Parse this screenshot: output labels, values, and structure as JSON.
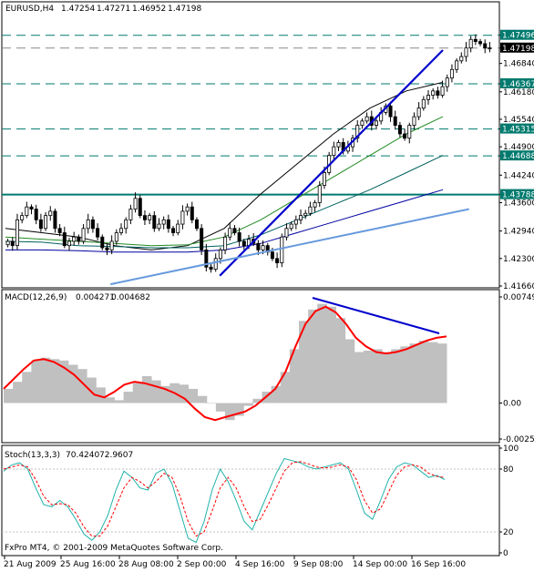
{
  "chart_data": [
    {
      "type": "line",
      "panel": "price",
      "title": "EURUSD,H4",
      "ohlc_header": [
        "1.47254",
        "1.47271",
        "1.46952",
        "1.47198"
      ],
      "ylim": [
        1.4166,
        1.4785
      ],
      "y_ticks": [
        "1.47496",
        "1.47198",
        "1.46840",
        "1.46367",
        "1.46180",
        "1.45540",
        "1.45315",
        "1.44900",
        "1.44688",
        "1.44240",
        "1.43788",
        "1.43600",
        "1.42940",
        "1.42300",
        "1.41660"
      ],
      "price_tags": [
        {
          "value": "1.47496",
          "style": "teal"
        },
        {
          "value": "1.47198",
          "style": "black"
        },
        {
          "value": "1.46367",
          "style": "teal"
        },
        {
          "value": "1.45315",
          "style": "teal"
        },
        {
          "value": "1.44688",
          "style": "teal"
        },
        {
          "value": "1.43788",
          "style": "teal"
        }
      ],
      "horizontal_levels": [
        1.47496,
        1.47198,
        1.46367,
        1.45315,
        1.44688,
        1.43788
      ],
      "close": [
        1.427,
        1.426,
        1.432,
        1.433,
        1.435,
        1.4345,
        1.432,
        1.43,
        1.433,
        1.434,
        1.43,
        1.429,
        1.426,
        1.427,
        1.428,
        1.427,
        1.43,
        1.432,
        1.43,
        1.428,
        1.4255,
        1.425,
        1.427,
        1.429,
        1.43,
        1.432,
        1.4345,
        1.437,
        1.433,
        1.432,
        1.433,
        1.43,
        1.431,
        1.432,
        1.43,
        1.429,
        1.431,
        1.434,
        1.435,
        1.432,
        1.43,
        1.425,
        1.421,
        1.4205,
        1.423,
        1.425,
        1.428,
        1.43,
        1.429,
        1.427,
        1.426,
        1.4275,
        1.4265,
        1.425,
        1.426,
        1.4245,
        1.423,
        1.422,
        1.428,
        1.43,
        1.431,
        1.432,
        1.433,
        1.4335,
        1.435,
        1.436,
        1.44,
        1.443,
        1.447,
        1.449,
        1.45,
        1.448,
        1.449,
        1.451,
        1.454,
        1.455,
        1.456,
        1.454,
        1.455,
        1.457,
        1.4585,
        1.456,
        1.454,
        1.452,
        1.451,
        1.454,
        1.456,
        1.458,
        1.46,
        1.461,
        1.462,
        1.461,
        1.463,
        1.465,
        1.467,
        1.469,
        1.47,
        1.472,
        1.474,
        1.4735,
        1.473,
        1.472,
        1.472
      ],
      "moving_averages": [
        {
          "color": "#000000",
          "start": [
            1.43,
            1.429,
            1.428,
            1.426,
            1.425,
            1.426,
            1.43,
            1.438,
            1.445,
            1.452,
            1.458,
            1.462,
            1.464
          ]
        },
        {
          "color": "#228b22",
          "start": [
            1.428,
            1.4275,
            1.427,
            1.4265,
            1.426,
            1.4262,
            1.428,
            1.432,
            1.437,
            1.442,
            1.447,
            1.452,
            1.456
          ]
        },
        {
          "color": "#006060",
          "start": [
            1.427,
            1.4268,
            1.426,
            1.4258,
            1.4255,
            1.4255,
            1.426,
            1.4285,
            1.432,
            1.4355,
            1.439,
            1.443,
            1.447
          ]
        },
        {
          "color": "#0000a0",
          "start": [
            1.425,
            1.425,
            1.4248,
            1.4245,
            1.4245,
            1.4245,
            1.425,
            1.4265,
            1.429,
            1.4315,
            1.434,
            1.4365,
            1.439
          ]
        }
      ],
      "trendlines": [
        {
          "color": "#0000cc",
          "from": [
            0.49,
            1.419
          ],
          "to": [
            1.0,
            1.4715
          ]
        },
        {
          "color": "#6699dd",
          "from": [
            0.24,
            1.417
          ],
          "to": [
            1.06,
            1.4345
          ]
        }
      ]
    },
    {
      "type": "bar",
      "panel": "macd",
      "title": "MACD(12,26,9)",
      "header_values": [
        "0.004271",
        "0.004682"
      ],
      "ylim": [
        -0.00254,
        0.00749
      ],
      "y_ticks": [
        "0.00749",
        "0.00",
        "-0.00254"
      ],
      "histogram": [
        0.001,
        0.0015,
        0.0022,
        0.003,
        0.0032,
        0.0031,
        0.003,
        0.0027,
        0.0024,
        0.0018,
        0.0011,
        0.0004,
        0.0002,
        0.0008,
        0.0014,
        0.0019,
        0.0016,
        0.0012,
        0.0014,
        0.0013,
        0.001,
        0.0005,
        0.0,
        -0.0006,
        -0.0012,
        -0.0009,
        -0.0002,
        0.0003,
        0.0008,
        0.0012,
        0.0022,
        0.0038,
        0.0058,
        0.0066,
        0.007,
        0.0068,
        0.006,
        0.0045,
        0.0036,
        0.0037,
        0.0038,
        0.0036,
        0.0038,
        0.004,
        0.0042,
        0.0044,
        0.0043,
        0.0042
      ],
      "signal": [
        0.001,
        0.0017,
        0.0024,
        0.003,
        0.0031,
        0.0029,
        0.0025,
        0.002,
        0.0013,
        0.0006,
        0.0004,
        0.0008,
        0.0013,
        0.0015,
        0.0014,
        0.0012,
        0.001,
        0.0007,
        0.0003,
        -0.0004,
        -0.001,
        -0.0012,
        -0.001,
        -0.0008,
        -0.0006,
        -0.0002,
        0.0004,
        0.001,
        0.0022,
        0.004,
        0.0056,
        0.0065,
        0.0068,
        0.0064,
        0.0056,
        0.0046,
        0.004,
        0.0036,
        0.0035,
        0.0036,
        0.0038,
        0.0041,
        0.0044,
        0.0046,
        0.0047
      ]
    },
    {
      "type": "line",
      "panel": "stochastic",
      "title": "Stoch(13,3,3)",
      "header_values": [
        "70.4240",
        "72.9607"
      ],
      "ylim": [
        0,
        100
      ],
      "y_ticks": [
        "100",
        "80",
        "20",
        "0"
      ],
      "main": [
        78,
        84,
        86,
        80,
        62,
        46,
        44,
        50,
        44,
        32,
        18,
        12,
        20,
        36,
        60,
        78,
        72,
        62,
        60,
        76,
        80,
        66,
        40,
        14,
        10,
        30,
        60,
        80,
        68,
        50,
        30,
        22,
        40,
        58,
        76,
        90,
        88,
        86,
        82,
        80,
        82,
        84,
        86,
        80,
        60,
        38,
        32,
        50,
        70,
        82,
        86,
        84,
        78,
        72,
        74,
        70
      ],
      "signal": [
        80,
        82,
        84,
        82,
        70,
        54,
        46,
        47,
        46,
        38,
        25,
        16,
        16,
        26,
        44,
        62,
        72,
        68,
        62,
        68,
        76,
        72,
        54,
        30,
        16,
        20,
        40,
        62,
        72,
        62,
        44,
        30,
        32,
        46,
        62,
        78,
        86,
        87,
        85,
        82,
        81,
        82,
        84,
        82,
        70,
        50,
        38,
        42,
        58,
        74,
        82,
        84,
        82,
        76,
        73,
        72
      ]
    }
  ],
  "x_axis_labels": [
    "21 Aug 2009",
    "25 Aug 16:00",
    "28 Aug 08:00",
    "2 Sep 00:00",
    "4 Sep 16:00",
    "9 Sep 08:00",
    "14 Sep 00:00",
    "16 Sep 16:00"
  ],
  "copyright": "FxPro MT4, © 2001-2009 MetaQuotes Software Corp.",
  "colors": {
    "background": "#ffffff",
    "candle": "#000000",
    "teal_level": "#007a6e",
    "macd_hist": "#c0c0c0",
    "macd_signal": "#ff0000",
    "stoch_main": "#20b2aa",
    "stoch_signal": "#ff0000"
  }
}
